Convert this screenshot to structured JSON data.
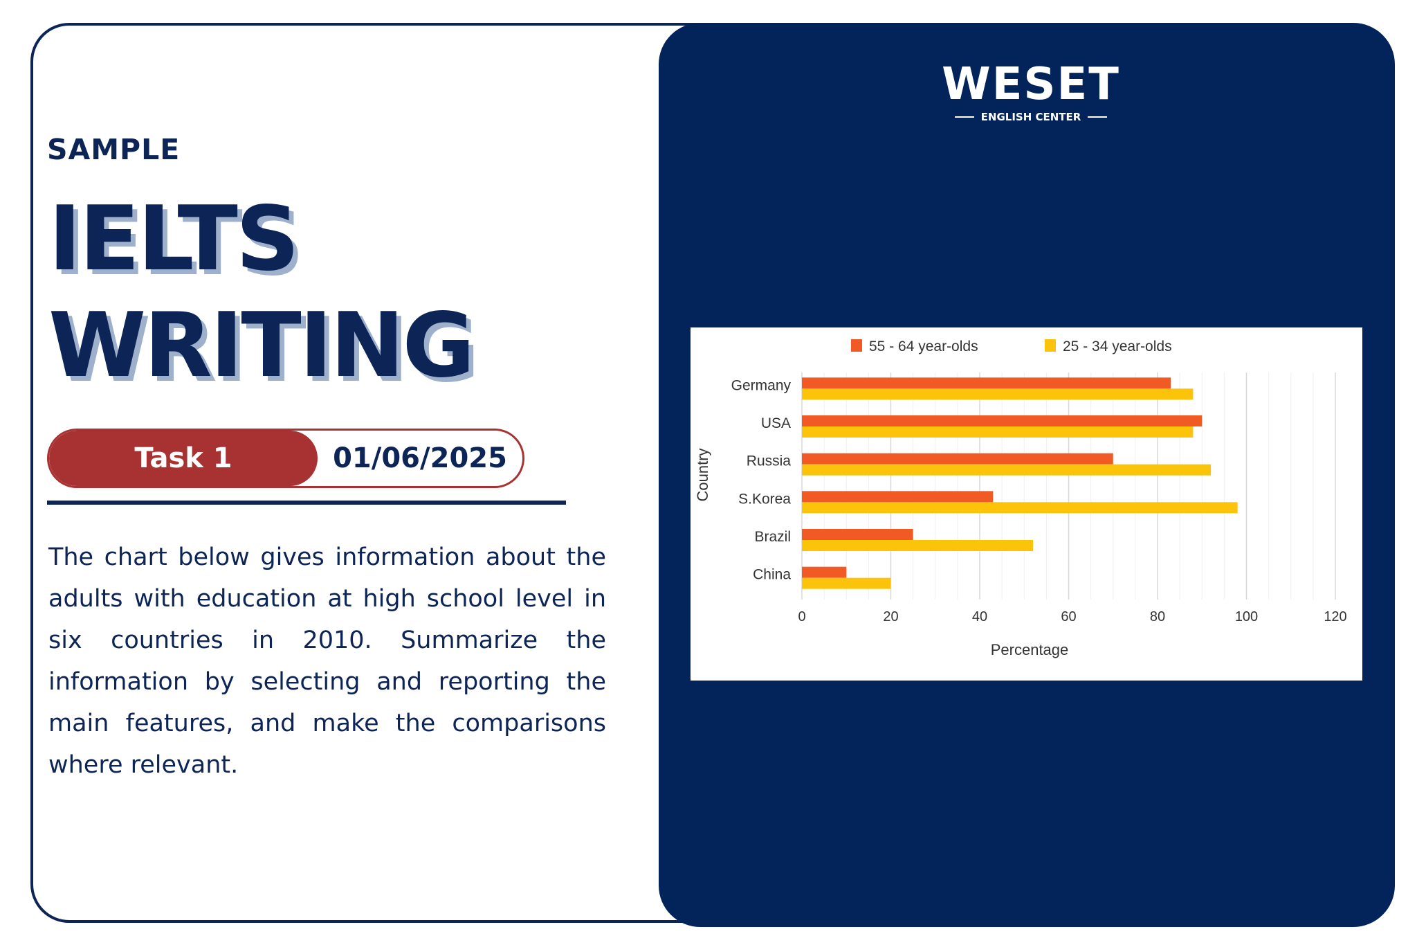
{
  "left": {
    "eyebrow": "SAMPLE",
    "title_line1": "IELTS",
    "title_line2": "WRITING",
    "task_label": "Task 1",
    "date": "01/06/2025",
    "prompt": "The chart below gives information about the adults with education at high school level in six countries in 2010. Summarize the information by selecting and reporting the main features, and make the comparisons where relevant."
  },
  "brand": {
    "name": "WESET",
    "tagline": "ENGLISH CENTER"
  },
  "colors": {
    "navy": "#02245a",
    "accent_red": "#a83232",
    "series_orange": "#f15a24",
    "series_yellow": "#fcc30b"
  },
  "chart_data": {
    "type": "bar",
    "orientation": "horizontal",
    "categories": [
      "Germany",
      "USA",
      "Russia",
      "S.Korea",
      "Brazil",
      "China"
    ],
    "series": [
      {
        "name": "55 - 64 year-olds",
        "color": "#f15a24",
        "values": [
          83,
          90,
          70,
          43,
          25,
          10
        ]
      },
      {
        "name": "25 - 34 year-olds",
        "color": "#fcc30b",
        "values": [
          88,
          88,
          92,
          98,
          52,
          20
        ]
      }
    ],
    "xlabel": "Percentage",
    "ylabel": "Country",
    "xlim": [
      0,
      120
    ],
    "xticks": [
      0,
      20,
      40,
      60,
      80,
      100,
      120
    ],
    "grid": true,
    "legend": "top"
  }
}
